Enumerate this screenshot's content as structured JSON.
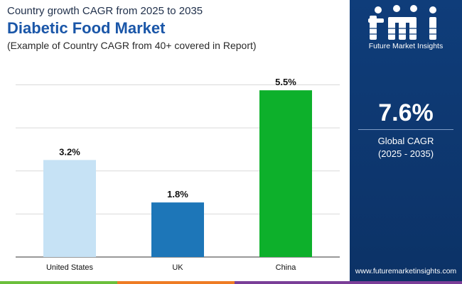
{
  "header": {
    "top_line": "Country growth CAGR from 2025 to 2035",
    "title": "Diabetic Food Market",
    "note": "(Example of Country CAGR from 40+ covered in Report)"
  },
  "chart_data": {
    "type": "bar",
    "categories": [
      "United States",
      "UK",
      "China"
    ],
    "values": [
      3.2,
      1.8,
      5.5
    ],
    "value_labels": [
      "3.2%",
      "1.8%",
      "5.5%"
    ],
    "bar_colors": [
      "#c6e2f5",
      "#1d76b8",
      "#0db02b"
    ],
    "ylim": [
      0,
      6.3
    ],
    "grid": true,
    "gridline_values": [
      1.42,
      2.84,
      4.26,
      5.68
    ]
  },
  "sidebar": {
    "logo_letters": "fmi",
    "logo_caption": "Future Market Insights",
    "cagr_value": "7.6%",
    "cagr_label_line1": "Global CAGR",
    "cagr_label_line2": "(2025 - 2035)",
    "website": "www.futuremarketinsights.com"
  },
  "colors": {
    "title": "#1a56a8",
    "sidebar_bg": "#0f3d7a",
    "grid": "#d9d9d9",
    "strip": [
      "#6bbf3b",
      "#ee7c25",
      "#7a3e98"
    ]
  }
}
